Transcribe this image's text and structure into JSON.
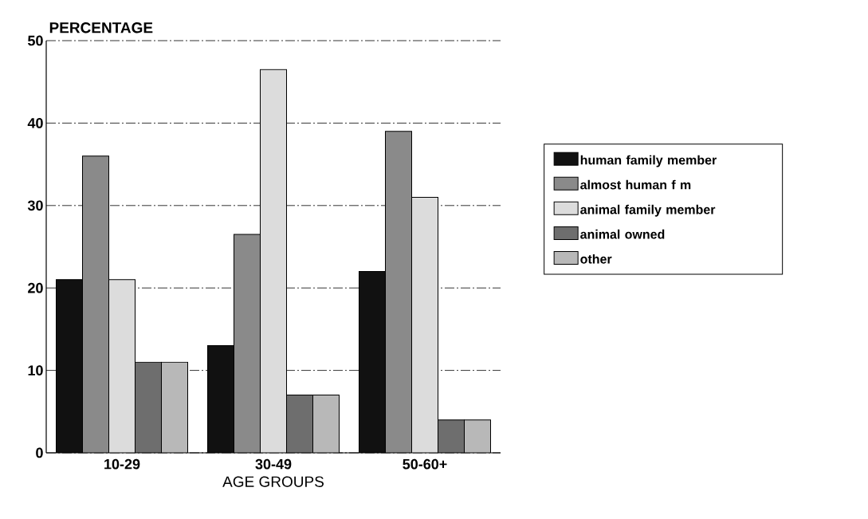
{
  "chart_data": {
    "type": "bar",
    "ylabel": "PERCENTAGE",
    "xlabel": "AGE GROUPS",
    "categories": [
      "10-29",
      "30-49",
      "50-60+"
    ],
    "series": [
      {
        "name": "human family member",
        "color": "#111111",
        "values": [
          21,
          13,
          22
        ]
      },
      {
        "name": "almost human f m",
        "color": "#8a8a8a",
        "values": [
          36,
          26.5,
          39
        ]
      },
      {
        "name": "animal family member",
        "color": "#dcdcdc",
        "values": [
          21,
          46.5,
          31
        ]
      },
      {
        "name": "animal owned",
        "color": "#6e6e6e",
        "values": [
          11,
          7,
          4
        ]
      },
      {
        "name": "other",
        "color": "#b8b8b8",
        "values": [
          11,
          7,
          4
        ]
      }
    ],
    "ylim": [
      0,
      50
    ],
    "yticks": [
      0,
      10,
      20,
      30,
      40,
      50
    ],
    "grid": "y",
    "legend": "right"
  }
}
